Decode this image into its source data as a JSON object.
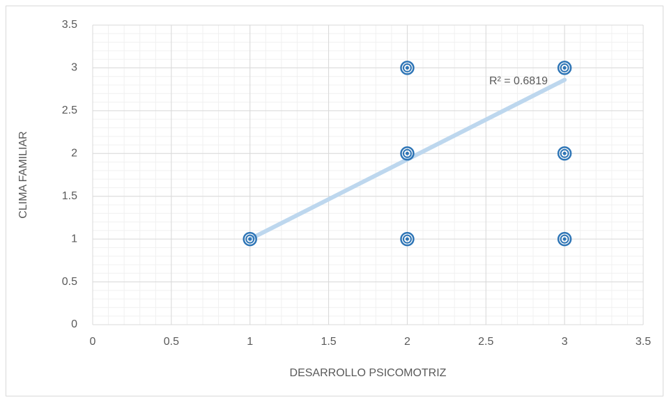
{
  "chart_data": {
    "type": "scatter",
    "x_label": "DESARROLLO PSICOMOTRIZ",
    "y_label": "CLIMA FAMILIAR",
    "annotation": "R² = 0.6819",
    "series": [
      {
        "color": "#2e75b6",
        "x": [
          1,
          2,
          3,
          2,
          3,
          2,
          3
        ],
        "values": [
          1,
          1,
          1,
          2,
          2,
          3,
          3
        ]
      }
    ],
    "trendline": {
      "color": "#bdd7ee",
      "x": [
        1,
        3
      ],
      "values": [
        1,
        2.86
      ]
    },
    "xlim": [
      0,
      3.5
    ],
    "xticks": [
      0,
      0.5,
      1,
      1.5,
      2,
      2.5,
      3,
      3.5
    ],
    "ylim": [
      0,
      3.5
    ],
    "yticks": [
      0,
      0.5,
      1,
      1.5,
      2,
      2.5,
      3,
      3.5
    ],
    "grid": true,
    "minor_grid_step": 0.1
  }
}
